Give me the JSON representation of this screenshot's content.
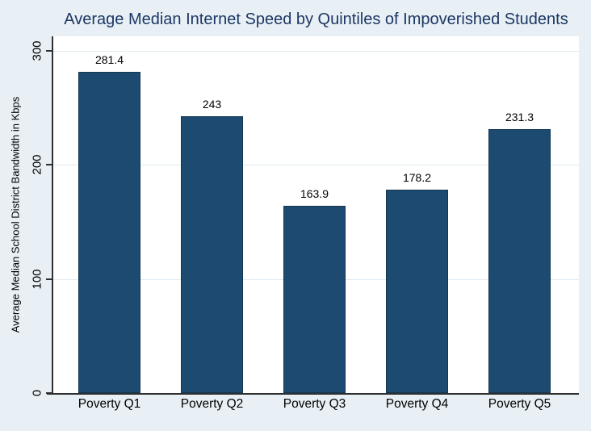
{
  "chart_data": {
    "type": "bar",
    "title": "Average Median Internet Speed by Quintiles of Impoverished Students",
    "xlabel": "",
    "ylabel": "Average Median School District Bandwidth in Kbps",
    "categories": [
      "Poverty Q1",
      "Poverty Q2",
      "Poverty Q3",
      "Poverty Q4",
      "Poverty Q5"
    ],
    "values": [
      281.4,
      243,
      163.9,
      178.2,
      231.3
    ],
    "value_labels": [
      "281.4",
      "243",
      "163.9",
      "178.2",
      "231.3"
    ],
    "ylim": [
      0,
      300
    ],
    "yticks": [
      0,
      100,
      200,
      300
    ],
    "grid": true,
    "legend": "none",
    "colors": {
      "canvas_background": "#e8f0f5",
      "plot_background": "#ffffff",
      "bar_fill": "#1d4a70",
      "bar_border": "#123752",
      "gridline": "#dfeaf2",
      "axis_line": "#2f2f2f",
      "title_text": "#1c3764",
      "label_text": "#000000"
    }
  }
}
